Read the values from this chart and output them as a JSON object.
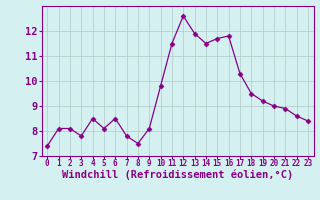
{
  "x": [
    0,
    1,
    2,
    3,
    4,
    5,
    6,
    7,
    8,
    9,
    10,
    11,
    12,
    13,
    14,
    15,
    16,
    17,
    18,
    19,
    20,
    21,
    22,
    23
  ],
  "y": [
    7.4,
    8.1,
    8.1,
    7.8,
    8.5,
    8.1,
    8.5,
    7.8,
    7.5,
    8.1,
    9.8,
    11.5,
    12.6,
    11.9,
    11.5,
    11.7,
    11.8,
    10.3,
    9.5,
    9.2,
    9.0,
    8.9,
    8.6,
    8.4
  ],
  "line_color": "#880088",
  "marker": "D",
  "marker_size": 2.5,
  "bg_color": "#d5f0f0",
  "grid_color": "#b0c8c8",
  "xlabel": "Windchill (Refroidissement éolien,°C)",
  "xlim": [
    -0.5,
    23.5
  ],
  "ylim": [
    7,
    13
  ],
  "yticks": [
    7,
    8,
    9,
    10,
    11,
    12
  ],
  "xticks": [
    0,
    1,
    2,
    3,
    4,
    5,
    6,
    7,
    8,
    9,
    10,
    11,
    12,
    13,
    14,
    15,
    16,
    17,
    18,
    19,
    20,
    21,
    22,
    23
  ],
  "tick_color": "#880088",
  "label_color": "#880088",
  "spine_color": "#880088",
  "xlabel_fontsize": 7.5,
  "ytick_fontsize": 7.5,
  "xtick_fontsize": 5.5
}
